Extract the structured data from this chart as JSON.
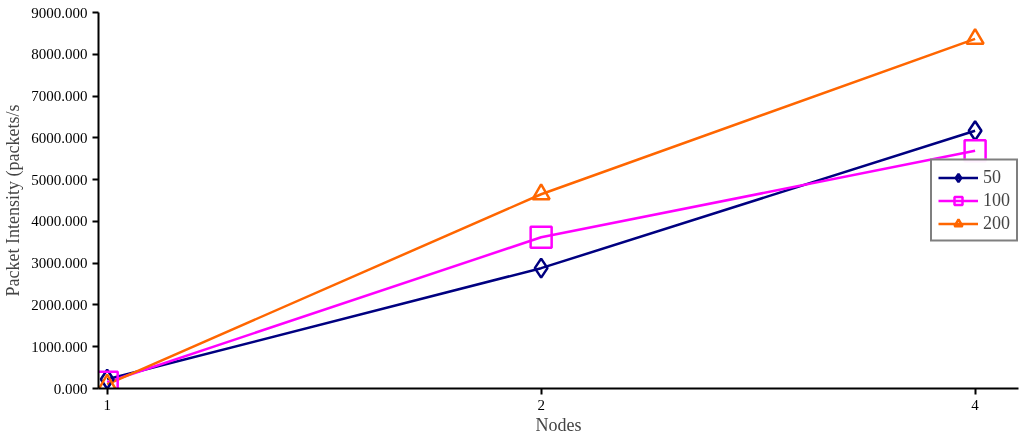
{
  "chart_data": {
    "type": "line",
    "xlabel": "Nodes",
    "ylabel": "Packet Intensity (packets/s",
    "categories": [
      "1",
      "2",
      "4"
    ],
    "series": [
      {
        "name": "50",
        "color": "#000080",
        "marker": "diamond",
        "values": [
          220,
          2880,
          6170
        ]
      },
      {
        "name": "100",
        "color": "#ff00ff",
        "marker": "square",
        "values": [
          150,
          3620,
          5690
        ]
      },
      {
        "name": "200",
        "color": "#ff6600",
        "marker": "triangle",
        "values": [
          100,
          4650,
          8370
        ]
      }
    ],
    "ylim": [
      0,
      9000
    ],
    "yticks": [
      {
        "value": 0,
        "label": "0.000"
      },
      {
        "value": 1000,
        "label": "1000.000"
      },
      {
        "value": 2000,
        "label": "2000.000"
      },
      {
        "value": 3000,
        "label": "3000.000"
      },
      {
        "value": 4000,
        "label": "4000.000"
      },
      {
        "value": 5000,
        "label": "5000.000"
      },
      {
        "value": 6000,
        "label": "6000.000"
      },
      {
        "value": 7000,
        "label": "7000.000"
      },
      {
        "value": 8000,
        "label": "8000.000"
      },
      {
        "value": 9000,
        "label": "9000.000"
      }
    ],
    "grid": false,
    "legend": "right",
    "line_style": "solid"
  }
}
